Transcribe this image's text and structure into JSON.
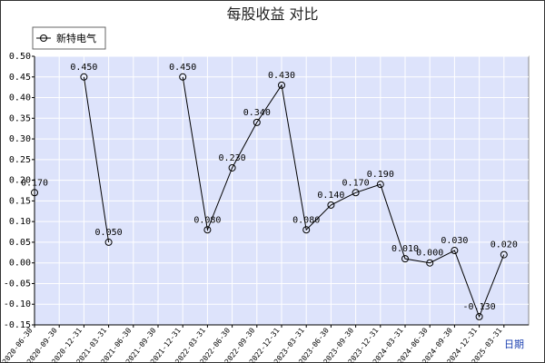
{
  "chart_data": {
    "type": "line",
    "title": "每股收益 对比",
    "xlabel": "日期",
    "ylabel": "",
    "ylim": [
      -0.15,
      0.5
    ],
    "yticks": [
      -0.15,
      -0.1,
      -0.05,
      0.0,
      0.05,
      0.1,
      0.15,
      0.2,
      0.25,
      0.3,
      0.35,
      0.4,
      0.45,
      0.5
    ],
    "ytick_labels": [
      "-0.15",
      "-0.10",
      "-0.05",
      "0.00",
      "0.05",
      "0.10",
      "0.15",
      "0.20",
      "0.25",
      "0.30",
      "0.35",
      "0.40",
      "0.45",
      "0.50"
    ],
    "categories": [
      "2020-06-30",
      "2020-09-30",
      "2020-12-31",
      "2021-03-31",
      "2021-06-30",
      "2021-09-30",
      "2021-12-31",
      "2022-03-31",
      "2022-06-30",
      "2022-09-30",
      "2022-12-31",
      "2023-03-31",
      "2023-06-30",
      "2023-09-30",
      "2023-12-31",
      "2024-03-31",
      "2024-06-30",
      "2024-09-30",
      "2024-12-31",
      "2025-03-31"
    ],
    "series": [
      {
        "name": "新特电气",
        "values": [
          0.17,
          null,
          0.45,
          0.05,
          null,
          null,
          0.45,
          0.08,
          0.23,
          0.34,
          0.43,
          0.08,
          0.14,
          0.17,
          0.19,
          0.01,
          0.0,
          0.03,
          -0.13,
          0.02
        ],
        "labels": [
          "0.170",
          null,
          "0.450",
          "0.050",
          null,
          null,
          "0.450",
          "0.080",
          "0.230",
          "0.340",
          "0.430",
          "0.080",
          "0.140",
          "0.170",
          "0.190",
          "0.010",
          "0.000",
          "0.030",
          "-0.130",
          "0.020"
        ]
      }
    ],
    "grid": true,
    "legend": "top-left",
    "colors": {
      "plot_background": "#dde3fb",
      "grid": "#ffffff",
      "line": "#000000",
      "xlabel": "#1a3fb0"
    }
  }
}
